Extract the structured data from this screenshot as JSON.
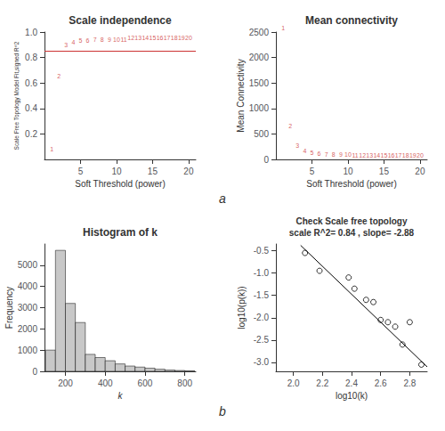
{
  "chart_data": [
    {
      "type": "text",
      "title": "Scale independence",
      "xlabel": "Soft Threshold (power)",
      "ylabel": "Scale Free Topology Model Fit,signed R^2",
      "color": "#CC3333",
      "annotations": [
        {
          "x": 1,
          "y": 0.05,
          "text": "1"
        },
        {
          "x": 2,
          "y": 0.62,
          "text": "2"
        },
        {
          "x": 3,
          "y": 0.87,
          "text": "3"
        },
        {
          "x": 4,
          "y": 0.89,
          "text": "4"
        },
        {
          "x": 5,
          "y": 0.9,
          "text": "5"
        },
        {
          "x": 6,
          "y": 0.9,
          "text": "6"
        },
        {
          "x": 7,
          "y": 0.91,
          "text": "7"
        },
        {
          "x": 8,
          "y": 0.91,
          "text": "8"
        },
        {
          "x": 9,
          "y": 0.91,
          "text": "9"
        },
        {
          "x": 10,
          "y": 0.91,
          "text": "10"
        },
        {
          "x": 11,
          "y": 0.91,
          "text": "11"
        },
        {
          "x": 12,
          "y": 0.92,
          "text": "12"
        },
        {
          "x": 13,
          "y": 0.92,
          "text": "13"
        },
        {
          "x": 14,
          "y": 0.92,
          "text": "14"
        },
        {
          "x": 15,
          "y": 0.92,
          "text": "15"
        },
        {
          "x": 16,
          "y": 0.92,
          "text": "16"
        },
        {
          "x": 17,
          "y": 0.92,
          "text": "17"
        },
        {
          "x": 18,
          "y": 0.92,
          "text": "18"
        },
        {
          "x": 19,
          "y": 0.92,
          "text": "19"
        },
        {
          "x": 20,
          "y": 0.92,
          "text": "20"
        }
      ],
      "hline": 0.85,
      "xlim": [
        0,
        21
      ],
      "xticks": [
        5,
        10,
        15,
        20
      ],
      "ylim": [
        0.0,
        1.0
      ],
      "yticks": [
        0.2,
        0.4,
        0.6,
        0.8,
        {
          "value": 1.0,
          "label": "1.0"
        }
      ],
      "grid": false
    },
    {
      "type": "text",
      "title": "Mean connectivity",
      "xlabel": "Soft Threshold (power)",
      "ylabel": "Mean Connectivity",
      "color": "#CC3333",
      "annotations": [
        {
          "x": 1,
          "y": 2500,
          "text": "1"
        },
        {
          "x": 2,
          "y": 580,
          "text": "2"
        },
        {
          "x": 3,
          "y": 190,
          "text": "3"
        },
        {
          "x": 4,
          "y": 95,
          "text": "4"
        },
        {
          "x": 5,
          "y": 55,
          "text": "5"
        },
        {
          "x": 6,
          "y": 35,
          "text": "6"
        },
        {
          "x": 7,
          "y": 25,
          "text": "7"
        },
        {
          "x": 8,
          "y": 18,
          "text": "8"
        },
        {
          "x": 9,
          "y": 13,
          "text": "9"
        },
        {
          "x": 10,
          "y": 10,
          "text": "10"
        },
        {
          "x": 11,
          "y": 8,
          "text": "11"
        },
        {
          "x": 12,
          "y": 6,
          "text": "12"
        },
        {
          "x": 13,
          "y": 5,
          "text": "13"
        },
        {
          "x": 14,
          "y": 4,
          "text": "14"
        },
        {
          "x": 15,
          "y": 3.5,
          "text": "15"
        },
        {
          "x": 16,
          "y": 3,
          "text": "16"
        },
        {
          "x": 17,
          "y": 2.5,
          "text": "17"
        },
        {
          "x": 18,
          "y": 2,
          "text": "18"
        },
        {
          "x": 19,
          "y": 1.8,
          "text": "19"
        },
        {
          "x": 20,
          "y": 1.5,
          "text": "20"
        }
      ],
      "xlim": [
        0,
        21
      ],
      "xticks": [
        5,
        10,
        15,
        20
      ],
      "ylim": [
        0,
        2500
      ],
      "yticks": [
        0,
        500,
        1000,
        1500,
        2000,
        2500
      ],
      "grid": false
    },
    {
      "type": "histogram",
      "title": "Histogram of k",
      "xlabel": "k",
      "ylabel": "Frequency",
      "color": "#C8C8C8",
      "bins": [
        100,
        150,
        200,
        250,
        300,
        350,
        400,
        450,
        500,
        550,
        600,
        650,
        700,
        750,
        800,
        850
      ],
      "values": [
        1000,
        5700,
        3200,
        2300,
        800,
        650,
        500,
        350,
        250,
        200,
        150,
        100,
        60,
        40,
        20
      ],
      "xlim": [
        95,
        855
      ],
      "xticks": [
        200,
        400,
        600,
        800
      ],
      "ylim": [
        0,
        6000
      ],
      "yticks": [
        0,
        1000,
        2000,
        3000,
        4000,
        5000
      ],
      "grid": false
    },
    {
      "type": "scatter",
      "title": "Check Scale free topology\nscale R^2= 0.84 , slope= -2.88",
      "xlabel": "log10(k)",
      "ylabel": "log10(p(k))",
      "series": [
        {
          "type": "scatter",
          "marker": "circle",
          "color": "#000000",
          "x": [
            2.08,
            2.18,
            2.38,
            2.42,
            2.5,
            2.55,
            2.6,
            2.65,
            2.7,
            2.75,
            2.8,
            2.88
          ],
          "values": [
            -0.55,
            -0.95,
            -1.1,
            -1.35,
            -1.6,
            -1.65,
            -2.05,
            -2.1,
            -2.2,
            -2.6,
            -2.1,
            -3.05
          ]
        },
        {
          "type": "line",
          "color": "#000000",
          "x": [
            2.05,
            2.92
          ],
          "values": [
            -0.38,
            -3.1
          ]
        }
      ],
      "xlim": [
        1.88,
        2.92
      ],
      "xticks": [
        {
          "value": 2.0,
          "label": "2.0"
        },
        2.2,
        2.4,
        2.6,
        2.8
      ],
      "ylim": [
        -3.2,
        -0.35
      ],
      "yticks": [
        {
          "value": -3.0,
          "label": "-3.0"
        },
        -2.5,
        {
          "value": -2.0,
          "label": "-2.0"
        },
        -1.5,
        {
          "value": -1.0,
          "label": "-1.0"
        },
        -0.5
      ],
      "grid": false
    }
  ],
  "annotations": [
    "a",
    "b"
  ]
}
